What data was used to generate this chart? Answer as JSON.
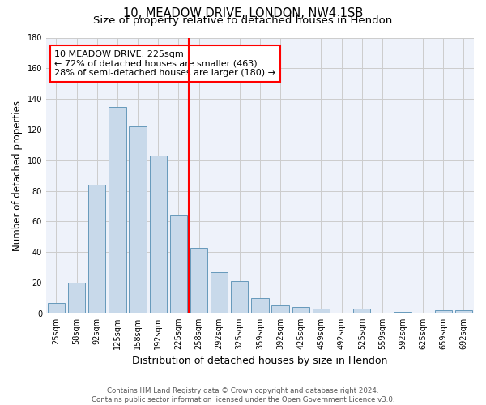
{
  "title_line1": "10, MEADOW DRIVE, LONDON, NW4 1SB",
  "title_line2": "Size of property relative to detached houses in Hendon",
  "xlabel": "Distribution of detached houses by size in Hendon",
  "ylabel": "Number of detached properties",
  "categories": [
    "25sqm",
    "58sqm",
    "92sqm",
    "125sqm",
    "158sqm",
    "192sqm",
    "225sqm",
    "258sqm",
    "292sqm",
    "325sqm",
    "359sqm",
    "392sqm",
    "425sqm",
    "459sqm",
    "492sqm",
    "525sqm",
    "559sqm",
    "592sqm",
    "625sqm",
    "659sqm",
    "692sqm"
  ],
  "values": [
    7,
    20,
    84,
    135,
    122,
    103,
    64,
    43,
    27,
    21,
    10,
    5,
    4,
    3,
    0,
    3,
    0,
    1,
    0,
    2,
    2
  ],
  "bar_color": "#c8d9ea",
  "bar_edge_color": "#6699bb",
  "vline_x": 6.5,
  "vline_color": "red",
  "annotation_text": "10 MEADOW DRIVE: 225sqm\n← 72% of detached houses are smaller (463)\n28% of semi-detached houses are larger (180) →",
  "annotation_box_color": "white",
  "annotation_box_edge_color": "red",
  "ylim": [
    0,
    180
  ],
  "yticks": [
    0,
    20,
    40,
    60,
    80,
    100,
    120,
    140,
    160,
    180
  ],
  "grid_color": "#cccccc",
  "background_color": "#eef2fa",
  "footer_line1": "Contains HM Land Registry data © Crown copyright and database right 2024.",
  "footer_line2": "Contains public sector information licensed under the Open Government Licence v3.0.",
  "title_fontsize": 10.5,
  "subtitle_fontsize": 9.5,
  "tick_fontsize": 7,
  "ylabel_fontsize": 8.5,
  "xlabel_fontsize": 9
}
